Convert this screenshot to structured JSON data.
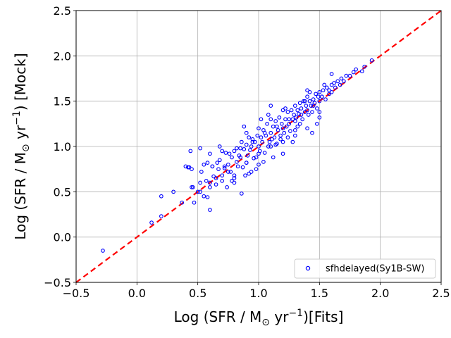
{
  "chart_data": {
    "type": "scatter",
    "title": "",
    "xlabel": {
      "pre": "Log (SFR / M",
      "sub": "⊙",
      "mid": " yr",
      "sup": "−1",
      "post": ")[Fits]"
    },
    "ylabel": {
      "pre": "Log (SFR / M",
      "sub": "⊙",
      "mid": " yr",
      "sup": "−1",
      "post": ") [Mock]"
    },
    "xlim": [
      -0.5,
      2.5
    ],
    "ylim": [
      -0.5,
      2.5
    ],
    "xticks": [
      -0.5,
      0.0,
      0.5,
      1.0,
      1.5,
      2.0,
      2.5
    ],
    "yticks": [
      -0.5,
      0.0,
      0.5,
      1.0,
      1.5,
      2.0,
      2.5
    ],
    "xtick_labels": [
      "−0.5",
      "0.0",
      "0.5",
      "1.0",
      "1.5",
      "2.0",
      "2.5"
    ],
    "ytick_labels": [
      "−0.5",
      "0.0",
      "0.5",
      "1.0",
      "1.5",
      "2.0",
      "2.5"
    ],
    "grid": true,
    "legend_position": "lower-right",
    "series": [
      {
        "name": "sfhdelayed(Sy1B-SW)",
        "color": "#0000ff",
        "marker": "open-circle",
        "x": [
          -0.28,
          0.12,
          0.2,
          0.2,
          0.3,
          0.37,
          0.4,
          0.42,
          0.43,
          0.44,
          0.45,
          0.46,
          0.47,
          0.5,
          0.52,
          0.52,
          0.53,
          0.55,
          0.57,
          0.58,
          0.6,
          0.6,
          0.62,
          0.63,
          0.65,
          0.66,
          0.67,
          0.68,
          0.7,
          0.72,
          0.73,
          0.74,
          0.75,
          0.76,
          0.77,
          0.78,
          0.8,
          0.8,
          0.82,
          0.83,
          0.84,
          0.85,
          0.86,
          0.87,
          0.88,
          0.89,
          0.9,
          0.9,
          0.91,
          0.92,
          0.93,
          0.94,
          0.95,
          0.96,
          0.97,
          0.98,
          0.99,
          1.0,
          1.0,
          1.01,
          1.02,
          1.03,
          1.04,
          1.05,
          1.06,
          1.07,
          1.08,
          1.09,
          1.1,
          1.1,
          1.11,
          1.12,
          1.13,
          1.14,
          1.15,
          1.16,
          1.17,
          1.18,
          1.19,
          1.2,
          1.2,
          1.21,
          1.22,
          1.23,
          1.24,
          1.25,
          1.26,
          1.27,
          1.28,
          1.29,
          1.3,
          1.3,
          1.31,
          1.32,
          1.33,
          1.34,
          1.35,
          1.36,
          1.37,
          1.38,
          1.39,
          1.4,
          1.4,
          1.41,
          1.42,
          1.43,
          1.44,
          1.45,
          1.46,
          1.47,
          1.48,
          1.49,
          1.5,
          1.5,
          1.52,
          1.53,
          1.55,
          1.56,
          1.58,
          1.6,
          1.6,
          1.62,
          1.63,
          1.65,
          1.67,
          1.68,
          1.7,
          1.72,
          1.75,
          1.78,
          1.8,
          1.85,
          1.87,
          1.93,
          0.55,
          0.6,
          0.65,
          0.7,
          0.75,
          0.8,
          0.85,
          0.9,
          0.95,
          1.0,
          1.05,
          1.1,
          1.15,
          1.2,
          1.25,
          1.3,
          1.35,
          1.4,
          1.45,
          1.5,
          0.62,
          0.72,
          0.82,
          0.92,
          1.02,
          1.12,
          1.22,
          1.32,
          1.42,
          1.52,
          0.58,
          0.68,
          0.78,
          0.88,
          0.98,
          1.08,
          1.18,
          1.28,
          1.38,
          1.48,
          1.58,
          0.45,
          0.52,
          0.6,
          0.7,
          0.8,
          0.9,
          1.0,
          1.1,
          1.2,
          1.3,
          1.4,
          1.5,
          1.6,
          0.86,
          0.94,
          1.04,
          1.14,
          1.24,
          1.34,
          1.44,
          1.54
        ],
        "y": [
          -0.15,
          0.16,
          0.23,
          0.45,
          0.5,
          0.38,
          0.78,
          0.77,
          0.77,
          0.95,
          0.75,
          0.55,
          0.38,
          0.5,
          0.6,
          0.98,
          0.72,
          0.8,
          0.62,
          0.44,
          0.55,
          0.3,
          0.78,
          0.67,
          0.65,
          0.82,
          0.75,
          0.85,
          0.68,
          0.76,
          0.93,
          0.55,
          0.8,
          0.92,
          0.72,
          0.88,
          0.95,
          0.6,
          0.83,
          0.78,
          0.9,
          0.88,
          1.05,
          0.77,
          0.97,
          0.68,
          1.02,
          0.82,
          0.9,
          1.1,
          0.96,
          1.0,
          1.08,
          0.87,
          1.05,
          0.75,
          1.12,
          1.0,
          1.2,
          0.95,
          1.1,
          1.05,
          1.18,
          0.93,
          1.12,
          1.25,
          1.0,
          1.05,
          1.15,
          1.3,
          1.08,
          1.22,
          1.1,
          1.28,
          1.03,
          1.18,
          1.32,
          1.12,
          1.25,
          1.2,
          1.4,
          1.15,
          1.3,
          1.22,
          1.38,
          1.25,
          1.17,
          1.4,
          1.3,
          1.35,
          1.28,
          1.45,
          1.32,
          1.4,
          1.36,
          1.25,
          1.42,
          1.3,
          1.5,
          1.38,
          1.45,
          1.4,
          1.55,
          1.35,
          1.5,
          1.45,
          1.38,
          1.52,
          1.48,
          1.58,
          1.42,
          1.55,
          1.5,
          1.6,
          1.55,
          1.62,
          1.52,
          1.65,
          1.58,
          1.68,
          1.6,
          1.7,
          1.65,
          1.72,
          1.68,
          1.75,
          1.72,
          1.78,
          1.78,
          1.82,
          1.85,
          1.83,
          1.88,
          1.95,
          0.45,
          0.6,
          0.58,
          0.62,
          0.72,
          0.68,
          0.98,
          0.82,
          1.05,
          0.92,
          1.15,
          1.0,
          1.22,
          1.05,
          1.3,
          1.18,
          1.35,
          1.2,
          1.45,
          1.38,
          0.78,
          0.78,
          0.98,
          0.7,
          1.3,
          0.88,
          1.42,
          1.22,
          1.6,
          1.55,
          0.82,
          1.0,
          0.62,
          1.22,
          0.88,
          1.35,
          1.08,
          1.05,
          1.5,
          1.25,
          1.62,
          0.55,
          0.5,
          0.92,
          0.95,
          0.65,
          1.15,
          0.8,
          1.45,
          0.92,
          1.12,
          1.62,
          1.32,
          1.8,
          0.48,
          0.72,
          0.83,
          1.02,
          1.1,
          1.48,
          1.15,
          1.68
        ]
      },
      {
        "name": "",
        "kind": "reference-line",
        "color": "#ff0000",
        "style": "dashed",
        "x": [
          -0.5,
          2.5
        ],
        "y": [
          -0.5,
          2.5
        ]
      }
    ]
  }
}
